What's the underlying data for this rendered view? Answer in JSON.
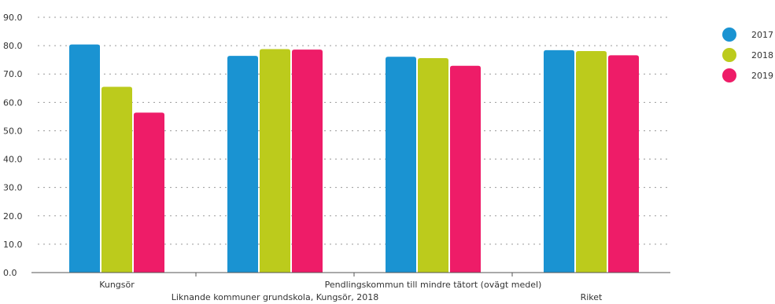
{
  "chart_data": {
    "type": "bar",
    "categories": [
      "Kungsör",
      "Liknande kommuner grundskola, Kungsör, 2018",
      "Pendlingskommun till mindre tätort (ovägt medel)",
      "Riket"
    ],
    "series": [
      {
        "name": "2017",
        "values": [
          80.4,
          76.4,
          76.1,
          78.4
        ],
        "color": "#1a93d2"
      },
      {
        "name": "2018",
        "values": [
          65.5,
          78.8,
          75.6,
          78.1
        ],
        "color": "#bccb1c"
      },
      {
        "name": "2019",
        "values": [
          56.4,
          78.6,
          72.9,
          76.6
        ],
        "color": "#ee1c68"
      }
    ],
    "yticks": [
      "0.0",
      "10.0",
      "20.0",
      "30.0",
      "40.0",
      "50.0",
      "60.0",
      "70.0",
      "80.0",
      "90.0"
    ],
    "ylim": [
      0,
      90
    ],
    "grid": true,
    "legend_position": "right"
  }
}
